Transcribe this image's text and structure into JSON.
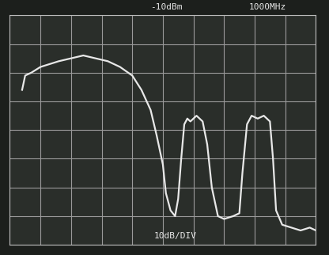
{
  "chart_data": {
    "type": "line",
    "annotations": [
      "-10dBm",
      "1000MHz",
      "10dB/DIV"
    ],
    "x": [
      0.4,
      0.5,
      0.7,
      1.0,
      1.3,
      1.6,
      2.0,
      2.4,
      2.8,
      3.2,
      3.6,
      4.0,
      4.3,
      4.6,
      4.8,
      5.0,
      5.1,
      5.25,
      5.4,
      5.5,
      5.6,
      5.7,
      5.8,
      5.9,
      6.1,
      6.3,
      6.45,
      6.6,
      6.8,
      7.0,
      7.3,
      7.5,
      7.6,
      7.75,
      7.9,
      8.1,
      8.3,
      8.5,
      8.6,
      8.7,
      8.9,
      9.2,
      9.5,
      9.8,
      10.0
    ],
    "values": [
      -36,
      -31,
      -30,
      -28,
      -27,
      -26,
      -25,
      -24,
      -25,
      -26,
      -28,
      -31,
      -36,
      -43,
      -52,
      -62,
      -72,
      -78,
      -80,
      -74,
      -60,
      -48,
      -46,
      -47,
      -45,
      -47,
      -55,
      -70,
      -80,
      -81,
      -80,
      -79,
      -65,
      -48,
      -45,
      -46,
      -45,
      -47,
      -60,
      -78,
      -83,
      -84,
      -85,
      -84,
      -85
    ],
    "color": "#e8e8e8",
    "xlim": [
      0,
      10
    ],
    "xticks": [
      0,
      1,
      2,
      3,
      4,
      5,
      6,
      7,
      8,
      9,
      10
    ],
    "ylim": [
      -90,
      -10
    ],
    "yticks": [
      -90,
      -80,
      -70,
      -60,
      -50,
      -40,
      -30,
      -20,
      -10
    ],
    "grid": true,
    "tick_labels": false
  }
}
